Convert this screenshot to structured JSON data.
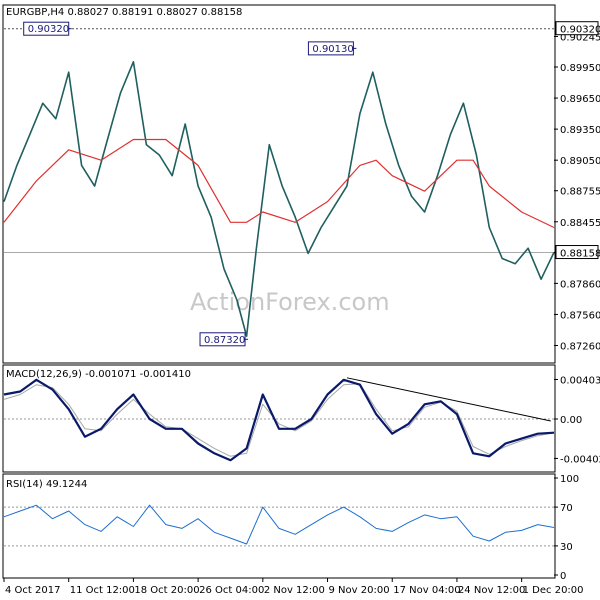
{
  "chart_data": [
    {
      "type": "line",
      "panel": "price",
      "header": "EURGBP,H4 0.88027 0.88191 0.88027 0.88158",
      "watermark": "ActionForex.com",
      "last_price_label": "0.88158",
      "top_price_label": "0.90320",
      "yticks": [
        "0.90245",
        "0.89950",
        "0.89650",
        "0.89350",
        "0.89050",
        "0.88755",
        "0.88455",
        "0.88158",
        "0.87860",
        "0.87560",
        "0.87260"
      ],
      "ylim": [
        0.8712,
        0.9052
      ],
      "annotations": [
        {
          "text": "0.90320",
          "x": 2,
          "y": 0.9032
        },
        {
          "text": "0.90130",
          "x": 10.8,
          "y": 0.9013
        },
        {
          "text": "0.87320",
          "x": 7.45,
          "y": 0.8732
        }
      ],
      "series": [
        {
          "role": "price",
          "color": "#1f5f5f",
          "x": [
            0,
            0.4,
            0.8,
            1.2,
            1.6,
            2.0,
            2.4,
            2.8,
            3.2,
            3.6,
            4.0,
            4.4,
            4.8,
            5.2,
            5.6,
            6.0,
            6.4,
            6.8,
            7.2,
            7.5,
            7.8,
            8.2,
            8.6,
            9.0,
            9.4,
            9.8,
            10.2,
            10.6,
            11.0,
            11.4,
            11.8,
            12.2,
            12.6,
            13.0,
            13.4,
            13.8,
            14.2,
            14.6,
            15.0,
            15.4,
            15.8,
            16.2,
            16.6,
            17.0
          ],
          "values": [
            0.8865,
            0.89,
            0.893,
            0.896,
            0.8945,
            0.899,
            0.89,
            0.888,
            0.8925,
            0.897,
            0.9,
            0.892,
            0.891,
            0.889,
            0.894,
            0.888,
            0.885,
            0.88,
            0.877,
            0.8735,
            0.882,
            0.892,
            0.888,
            0.885,
            0.8815,
            0.884,
            0.886,
            0.888,
            0.895,
            0.899,
            0.894,
            0.89,
            0.887,
            0.8855,
            0.889,
            0.893,
            0.896,
            0.891,
            0.884,
            0.881,
            0.8805,
            0.882,
            0.879,
            0.8816
          ]
        },
        {
          "role": "moving-average",
          "color": "#e03030",
          "x": [
            0,
            1,
            2,
            3,
            4,
            5,
            6,
            7,
            7.5,
            8,
            9,
            10,
            11,
            11.5,
            12,
            13,
            14,
            14.5,
            15,
            16,
            17
          ],
          "values": [
            0.8845,
            0.8885,
            0.8915,
            0.8905,
            0.8925,
            0.8925,
            0.89,
            0.8845,
            0.8845,
            0.8855,
            0.8845,
            0.8865,
            0.89,
            0.8905,
            0.889,
            0.8875,
            0.8905,
            0.8905,
            0.888,
            0.8855,
            0.884
          ]
        }
      ]
    },
    {
      "type": "line",
      "panel": "macd",
      "header": "MACD(12,26,9) -0.001071 -0.001410",
      "yticks": [
        "0.00403",
        "0.00",
        "-0.004021"
      ],
      "ylim": [
        -0.0052,
        0.0052
      ],
      "series": [
        {
          "role": "macd",
          "color": "#0a1a6b",
          "x": [
            0,
            0.5,
            1,
            1.5,
            2,
            2.5,
            3,
            3.5,
            4,
            4.5,
            5,
            5.5,
            6,
            6.5,
            7,
            7.5,
            8,
            8.5,
            9,
            9.5,
            10,
            10.5,
            11,
            11.5,
            12,
            12.5,
            13,
            13.5,
            14,
            14.5,
            15,
            15.5,
            16,
            16.5,
            17
          ],
          "values": [
            0.0025,
            0.0028,
            0.004,
            0.003,
            0.001,
            -0.0018,
            -0.001,
            0.001,
            0.0025,
            0.0,
            -0.001,
            -0.001,
            -0.0025,
            -0.0035,
            -0.0042,
            -0.003,
            0.0025,
            -0.001,
            -0.001,
            0.0,
            0.0025,
            0.004,
            0.0035,
            0.0005,
            -0.0015,
            -0.0005,
            0.0015,
            0.0018,
            0.0005,
            -0.0035,
            -0.0038,
            -0.0025,
            -0.002,
            -0.0015,
            -0.0014
          ]
        },
        {
          "role": "signal",
          "color": "#a8a8a8",
          "x": [
            0,
            0.5,
            1,
            1.5,
            2,
            2.5,
            3,
            3.5,
            4,
            4.5,
            5,
            5.5,
            6,
            6.5,
            7,
            7.5,
            8,
            8.5,
            9,
            9.5,
            10,
            10.5,
            11,
            11.5,
            12,
            12.5,
            13,
            13.5,
            14,
            14.5,
            15,
            15.5,
            16,
            16.5,
            17
          ],
          "values": [
            0.002,
            0.0025,
            0.0035,
            0.0032,
            0.0015,
            -0.001,
            -0.0012,
            0.0005,
            0.002,
            0.0005,
            -0.0008,
            -0.001,
            -0.002,
            -0.003,
            -0.0038,
            -0.0035,
            0.0015,
            -0.0005,
            -0.0012,
            -0.0002,
            0.002,
            0.0035,
            0.0036,
            0.001,
            -0.0012,
            -0.0008,
            0.0012,
            0.0017,
            0.0008,
            -0.0028,
            -0.0036,
            -0.0028,
            -0.0022,
            -0.0017,
            -0.0014
          ]
        }
      ],
      "trendline": {
        "x": [
          10.6,
          16.9
        ],
        "values": [
          0.0042,
          -0.0002
        ]
      }
    },
    {
      "type": "line",
      "panel": "rsi",
      "header": "RSI(14) 49.1244",
      "yticks": [
        "100",
        "70",
        "30",
        "0"
      ],
      "ylim": [
        0,
        100
      ],
      "levels": [
        70,
        30
      ],
      "series": [
        {
          "role": "rsi",
          "color": "#1e6fcf",
          "x": [
            0,
            0.5,
            1,
            1.5,
            2,
            2.5,
            3,
            3.5,
            4,
            4.5,
            5,
            5.5,
            6,
            6.5,
            7,
            7.5,
            8,
            8.5,
            9,
            9.5,
            10,
            10.5,
            11,
            11.5,
            12,
            12.5,
            13,
            13.5,
            14,
            14.5,
            15,
            15.5,
            16,
            16.5,
            17
          ],
          "values": [
            60,
            66,
            72,
            58,
            66,
            52,
            45,
            60,
            50,
            72,
            52,
            48,
            58,
            44,
            38,
            32,
            70,
            48,
            42,
            52,
            62,
            70,
            60,
            48,
            45,
            54,
            62,
            58,
            60,
            40,
            35,
            44,
            46,
            52,
            49
          ]
        }
      ]
    }
  ],
  "x_axis": {
    "ticks": [
      {
        "x": 0,
        "label": "4 Oct 2017"
      },
      {
        "x": 2,
        "label": "11 Oct 12:00"
      },
      {
        "x": 4,
        "label": "18 Oct 20:00"
      },
      {
        "x": 6,
        "label": "26 Oct 04:00"
      },
      {
        "x": 8,
        "label": "2 Nov 12:00"
      },
      {
        "x": 10,
        "label": "9 Nov 20:00"
      },
      {
        "x": 12,
        "label": "17 Nov 04:00"
      },
      {
        "x": 14,
        "label": "24 Nov 12:00"
      },
      {
        "x": 16,
        "label": "1 Dec 20:00"
      }
    ]
  },
  "colors": {
    "background": "#ffffff",
    "frame": "#000000",
    "price": "#1f5f5f",
    "moving_average": "#e03030",
    "macd": "#0a1a6b",
    "signal": "#a8a8a8",
    "rsi": "#1e6fcf",
    "grid": "#999999",
    "watermark": "#c8c8c8"
  }
}
